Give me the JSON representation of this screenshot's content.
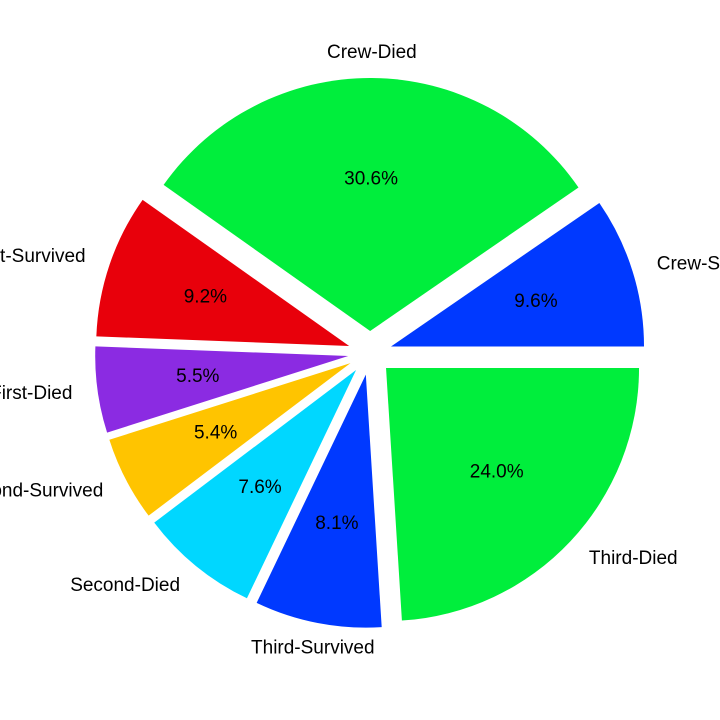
{
  "chart_data": {
    "type": "pie",
    "labels": [
      "Crew-Survived",
      "Crew-Died",
      "First-Survived",
      "First-Died",
      "Second-Survived",
      "Second-Died",
      "Third-Survived",
      "Third-Died"
    ],
    "values": [
      9.6,
      30.6,
      9.2,
      5.5,
      5.4,
      7.6,
      8.1,
      24.0
    ],
    "value_labels": [
      "9.6%",
      "30.6%",
      "9.2%",
      "5.5%",
      "5.4%",
      "7.6%",
      "8.1%",
      "24.0%"
    ],
    "colors": [
      "#0039ff",
      "#00ee3c",
      "#e8000b",
      "#8b2be2",
      "#ffc400",
      "#00d7ff",
      "#0039ff",
      "#00ee3c"
    ],
    "start_angle_deg": 0,
    "direction": "counterclockwise",
    "exploded": true,
    "legend": "none"
  }
}
